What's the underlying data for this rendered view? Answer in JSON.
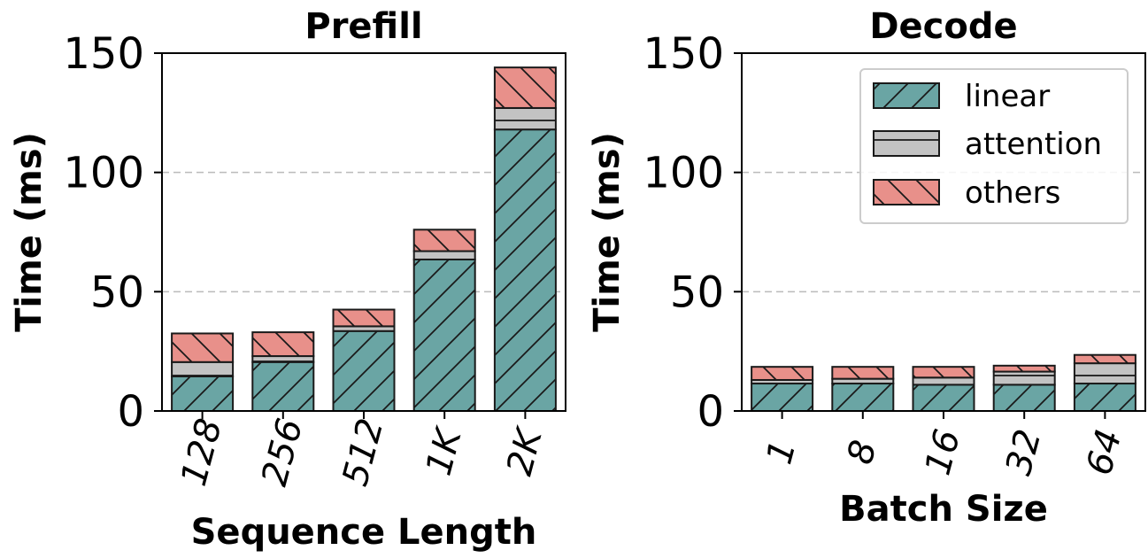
{
  "colors": {
    "linear": "#6aa5a4",
    "attention": "#c3c3c3",
    "others": "#e8908a",
    "edge": "#1a1a1a",
    "grid": "#bbbbbb"
  },
  "chart_data": [
    {
      "type": "bar",
      "stacked": true,
      "title": "Prefill",
      "xlabel": "Sequence Length",
      "ylabel": "Time (ms)",
      "ylim": [
        0,
        150
      ],
      "yticks": [
        "0",
        "50",
        "100",
        "150"
      ],
      "categories": [
        "128",
        "256",
        "512",
        "1K",
        "2K"
      ],
      "grid": "y dashed",
      "legend": null,
      "series": [
        {
          "name": "linear",
          "hatch": "/",
          "values": [
            14.5,
            20.5,
            33.5,
            63.5,
            118
          ]
        },
        {
          "name": "attention",
          "hatch": "-",
          "values": [
            6,
            2.5,
            2,
            3.5,
            9
          ]
        },
        {
          "name": "others",
          "hatch": "\\",
          "values": [
            12,
            10,
            7,
            9,
            17
          ]
        }
      ]
    },
    {
      "type": "bar",
      "stacked": true,
      "title": "Decode",
      "xlabel": "Batch Size",
      "ylabel": "Time (ms)",
      "ylim": [
        0,
        150
      ],
      "yticks": [
        "0",
        "50",
        "100",
        "150"
      ],
      "categories": [
        "1",
        "8",
        "16",
        "32",
        "64"
      ],
      "grid": "y dashed",
      "legend": "top-right",
      "series": [
        {
          "name": "linear",
          "hatch": "/",
          "values": [
            11.5,
            11.5,
            11,
            11,
            11.5
          ]
        },
        {
          "name": "attention",
          "hatch": "-",
          "values": [
            1.5,
            2,
            3,
            5.5,
            8.5
          ]
        },
        {
          "name": "others",
          "hatch": "\\",
          "values": [
            5.5,
            5,
            4.5,
            2.5,
            3.5
          ]
        }
      ]
    }
  ]
}
